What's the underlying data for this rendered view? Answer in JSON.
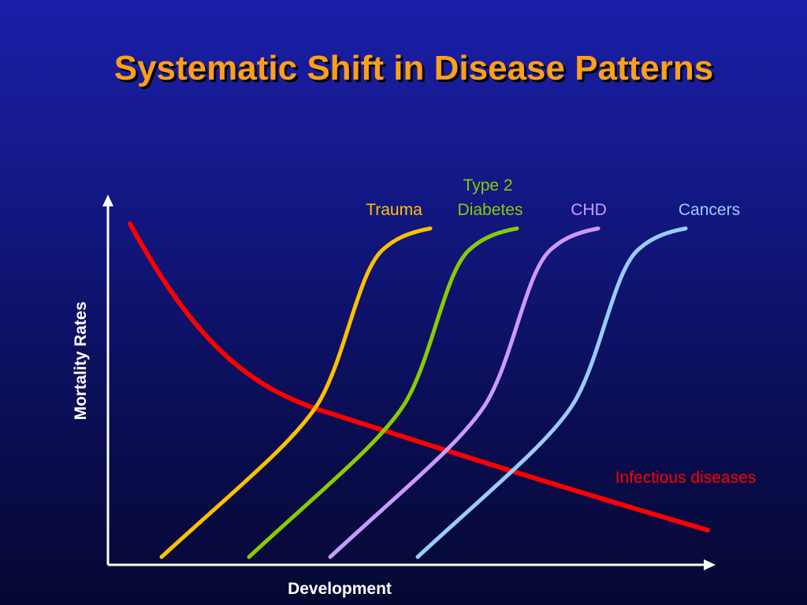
{
  "chart_data": {
    "type": "line",
    "title": "Systematic Shift in Disease Patterns",
    "xlabel": "Development",
    "ylabel": "Mortality Rates",
    "grid": false,
    "series": [
      {
        "name": "Infectious diseases",
        "color": "#ff0000",
        "trend": "decreasing"
      },
      {
        "name": "Trauma",
        "color": "#ffc000",
        "trend": "increasing"
      },
      {
        "name": "Type 2 Diabetes",
        "label_lines": [
          "Type 2",
          "Diabetes"
        ],
        "color": "#88cc00",
        "trend": "increasing"
      },
      {
        "name": "CHD",
        "color": "#cc99ff",
        "trend": "increasing"
      },
      {
        "name": "Cancers",
        "color": "#99ccff",
        "trend": "increasing"
      }
    ]
  }
}
